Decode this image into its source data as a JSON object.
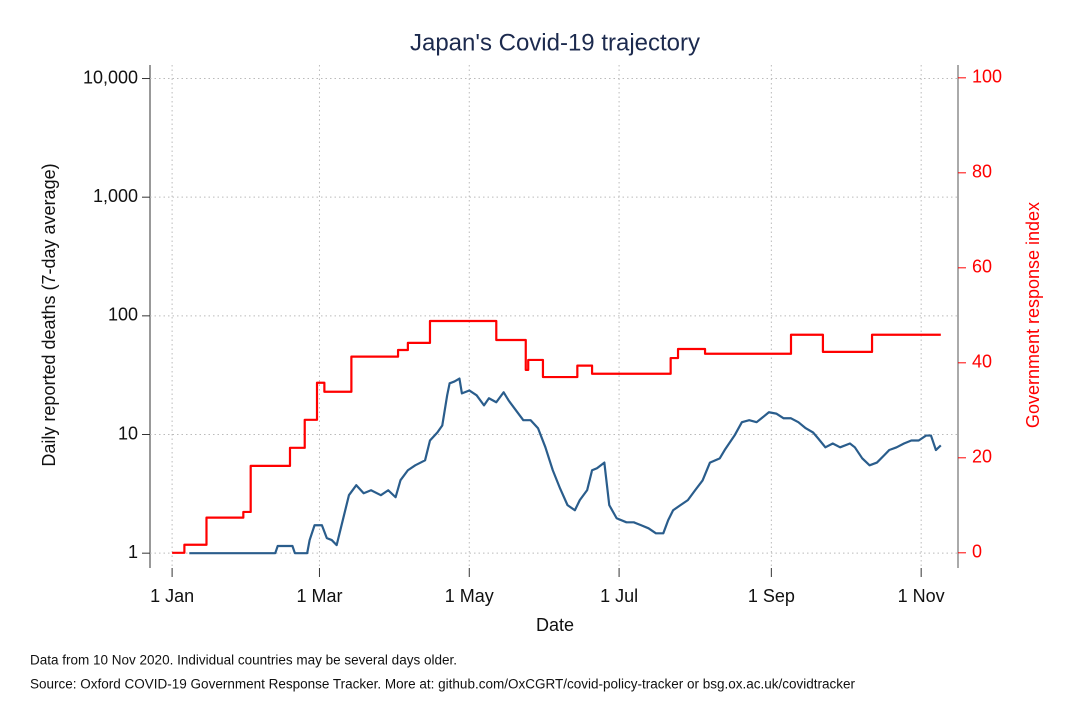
{
  "chart_data": {
    "type": "line",
    "title": "Japan's Covid-19 trajectory",
    "xlabel": "Date",
    "ylabel": "Daily reported deaths (7-day average)",
    "y2label": "Government response index",
    "xlim": [
      -9,
      320
    ],
    "xticks": [
      {
        "value": 0,
        "label": "1 Jan"
      },
      {
        "value": 60,
        "label": "1 Mar"
      },
      {
        "value": 121,
        "label": "1 May"
      },
      {
        "value": 182,
        "label": "1 Jul"
      },
      {
        "value": 244,
        "label": "1 Sep"
      },
      {
        "value": 305,
        "label": "1 Nov"
      }
    ],
    "ylim": [
      0.75,
      13000
    ],
    "yscale": "log",
    "yticks": [
      1,
      10,
      100,
      {
        "value": 1000,
        "label": "1,000"
      },
      {
        "value": 10000,
        "label": "10,000"
      }
    ],
    "y2lim": [
      -3.2,
      102.7
    ],
    "y2ticks": [
      0,
      20,
      40,
      60,
      80,
      100
    ],
    "y2color": "#ff0000",
    "grid": true,
    "series": [
      {
        "name": "Daily reported deaths (7-day average)",
        "color": "#2a5d8c",
        "x": [
          7,
          42,
          43,
          49,
          50,
          55,
          56,
          58,
          61,
          63,
          65,
          67,
          70,
          72,
          75,
          78,
          81,
          85,
          88,
          91,
          93,
          96,
          99,
          103,
          105,
          108,
          110,
          112,
          113,
          115,
          117,
          118,
          121,
          124,
          127,
          129,
          132,
          135,
          137,
          140,
          143,
          146,
          149,
          152,
          155,
          158,
          161,
          164,
          166,
          169,
          171,
          173,
          176,
          178,
          181,
          185,
          188,
          191,
          194,
          197,
          200,
          202,
          204,
          207,
          210,
          213,
          216,
          219,
          223,
          225,
          229,
          232,
          235,
          238,
          240,
          243,
          246,
          249,
          252,
          255,
          258,
          261,
          263,
          266,
          269,
          272,
          276,
          278,
          281,
          284,
          287,
          290,
          292,
          295,
          298,
          301,
          304,
          307,
          309,
          311,
          313
        ],
        "values": [
          1,
          1,
          1.15,
          1.15,
          1,
          1,
          1.29,
          1.72,
          1.72,
          1.34,
          1.29,
          1.17,
          2.09,
          3.08,
          3.74,
          3.2,
          3.39,
          3.08,
          3.39,
          2.96,
          4.12,
          5.0,
          5.5,
          6.06,
          8.9,
          10.4,
          11.9,
          21.4,
          27,
          28,
          29.6,
          22.2,
          23.5,
          21.4,
          17.6,
          20.2,
          18.7,
          22.7,
          19.4,
          16,
          13.2,
          13.2,
          11.3,
          7.8,
          5,
          3.5,
          2.54,
          2.3,
          2.8,
          3.4,
          5.0,
          5.2,
          5.8,
          2.54,
          1.97,
          1.82,
          1.82,
          1.72,
          1.62,
          1.47,
          1.47,
          1.9,
          2.3,
          2.54,
          2.8,
          3.4,
          4.1,
          5.8,
          6.3,
          7.4,
          9.8,
          12.7,
          13.2,
          12.7,
          13.7,
          15.4,
          15,
          13.7,
          13.7,
          12.7,
          11.3,
          10.4,
          9.3,
          7.8,
          8.4,
          7.8,
          8.4,
          7.8,
          6.3,
          5.5,
          5.8,
          6.7,
          7.4,
          7.8,
          8.4,
          8.9,
          8.9,
          9.8,
          9.8,
          7.4,
          8.1
        ]
      },
      {
        "name": "Government response index",
        "color": "#ff0000",
        "axis": "y2",
        "step": true,
        "x": [
          0,
          5,
          14,
          29,
          32,
          48,
          54,
          59,
          62,
          73,
          92,
          96,
          105,
          132,
          144,
          145,
          151,
          165,
          171,
          203,
          206,
          217,
          252,
          265,
          285,
          313
        ],
        "values": [
          0,
          1.7,
          7.4,
          8.6,
          18.3,
          22.1,
          28,
          35.8,
          33.9,
          41.3,
          42.7,
          44.2,
          48.8,
          44.8,
          38.5,
          40.6,
          37,
          39.4,
          37.7,
          41,
          42.9,
          41.9,
          45.9,
          42.3,
          45.9,
          45.9
        ]
      }
    ],
    "notes": [
      "Data from 10 Nov 2020. Individual countries may be several days older.",
      "Source: Oxford COVID-19 Government Response Tracker. More at: github.com/OxCGRT/covid-policy-tracker or bsg.ox.ac.uk/covidtracker"
    ]
  }
}
